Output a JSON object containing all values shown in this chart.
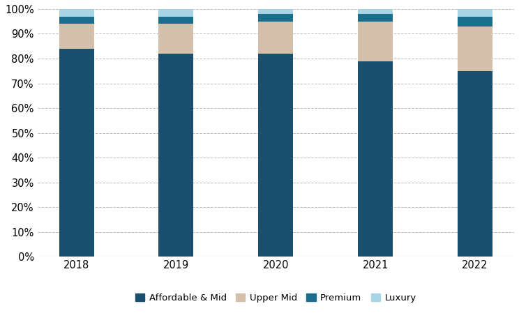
{
  "years": [
    "2018",
    "2019",
    "2020",
    "2021",
    "2022"
  ],
  "affordable_mid": [
    84,
    82,
    82,
    79,
    75
  ],
  "upper_mid": [
    10,
    12,
    13,
    16,
    18
  ],
  "premium": [
    3,
    3,
    3,
    3,
    4
  ],
  "luxury": [
    3,
    3,
    2,
    2,
    3
  ],
  "colors": {
    "affordable_mid": "#1a4f6e",
    "upper_mid": "#d4bfab",
    "premium": "#1b6f8c",
    "luxury": "#a8d4e6"
  },
  "legend_labels": [
    "Affordable & Mid",
    "Upper Mid",
    "Premium",
    "Luxury"
  ],
  "ylim": [
    0,
    100
  ],
  "yticks": [
    0,
    10,
    20,
    30,
    40,
    50,
    60,
    70,
    80,
    90,
    100
  ],
  "ytick_labels": [
    "0%",
    "10%",
    "20%",
    "30%",
    "40%",
    "50%",
    "60%",
    "70%",
    "80%",
    "90%",
    "100%"
  ],
  "background_color": "#ffffff",
  "grid_color": "#bbbbbb",
  "bar_width": 0.35,
  "figsize": [
    7.44,
    4.49
  ],
  "dpi": 100
}
